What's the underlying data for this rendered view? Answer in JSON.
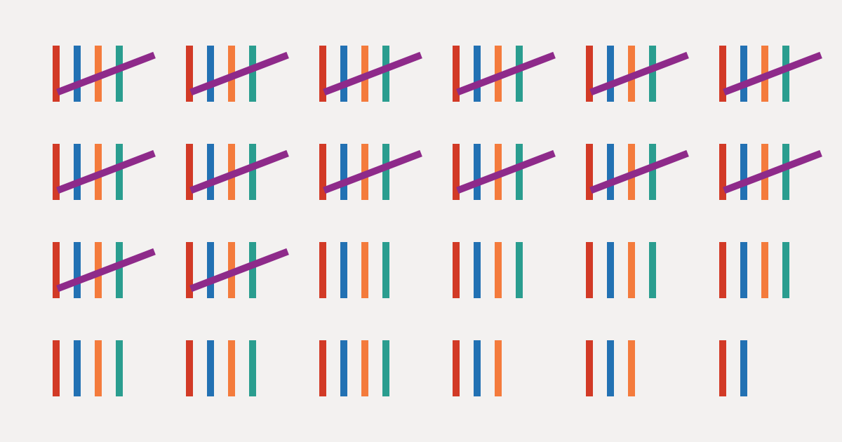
{
  "colors": {
    "background": "#f3f1f0",
    "marks": [
      "#d23a26",
      "#2271b3",
      "#f47b3c",
      "#2a9d8f"
    ],
    "slash": "#8e2a8a"
  },
  "tally_groups": [
    {
      "marks": 4,
      "crossed": true
    },
    {
      "marks": 4,
      "crossed": true
    },
    {
      "marks": 4,
      "crossed": true
    },
    {
      "marks": 4,
      "crossed": true
    },
    {
      "marks": 4,
      "crossed": true
    },
    {
      "marks": 4,
      "crossed": true
    },
    {
      "marks": 4,
      "crossed": true
    },
    {
      "marks": 4,
      "crossed": true
    },
    {
      "marks": 4,
      "crossed": true
    },
    {
      "marks": 4,
      "crossed": true
    },
    {
      "marks": 4,
      "crossed": true
    },
    {
      "marks": 4,
      "crossed": true
    },
    {
      "marks": 4,
      "crossed": true
    },
    {
      "marks": 4,
      "crossed": true
    },
    {
      "marks": 4,
      "crossed": false
    },
    {
      "marks": 4,
      "crossed": false
    },
    {
      "marks": 4,
      "crossed": false
    },
    {
      "marks": 4,
      "crossed": false
    },
    {
      "marks": 4,
      "crossed": false
    },
    {
      "marks": 4,
      "crossed": false
    },
    {
      "marks": 4,
      "crossed": false
    },
    {
      "marks": 3,
      "crossed": false
    },
    {
      "marks": 3,
      "crossed": false
    },
    {
      "marks": 2,
      "crossed": false
    }
  ]
}
